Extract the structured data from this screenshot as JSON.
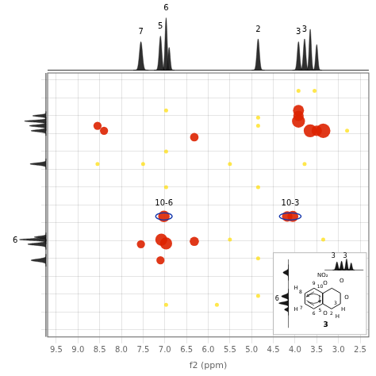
{
  "chart_data": {
    "type": "scatter",
    "x_label": "f2 (ppm)",
    "xlim": [
      9.7,
      2.3
    ],
    "ylim": [
      9.7,
      2.3
    ],
    "xticks": [
      9.5,
      {
        "value": 9,
        "label": "9.0"
      },
      8.5,
      {
        "value": 8,
        "label": "8.0"
      },
      7.5,
      {
        "value": 7,
        "label": "7.0"
      },
      6.5,
      {
        "value": 6,
        "label": "6.0"
      },
      5.5,
      {
        "value": 5,
        "label": "5.0"
      },
      4.5,
      {
        "value": 4,
        "label": "4.0"
      },
      3.5,
      {
        "value": 3,
        "label": "3.0"
      },
      2.5
    ],
    "yticks": [
      9.5,
      9,
      8.5,
      8,
      7.5,
      7,
      6.5,
      6,
      5.5,
      5,
      4.5,
      4,
      3.5,
      3,
      2.5
    ],
    "tick_labels": "x",
    "grid": true,
    "series": [
      {
        "color": "#ffdd00",
        "x": [
          6.97,
          5.8,
          6.97,
          5.5,
          6.97,
          6.97,
          3.35,
          4.85,
          3.92,
          3.55,
          2.8,
          5.5,
          4.85,
          7.5,
          4.85,
          8.55,
          4.85,
          3.78,
          4.85
        ],
        "y": [
          8.8,
          8.8,
          5.5,
          6.97,
          4.5,
          3.35,
          6.97,
          3.55,
          2.8,
          2.8,
          3.92,
          4.85,
          5.5,
          4.85,
          7.5,
          4.85,
          8.55,
          4.85,
          3.78
        ]
      },
      {
        "color": "#dd2200",
        "x": [
          7.1,
          7.55,
          7.08,
          6.97,
          7.02,
          6.32,
          4.05,
          4.18,
          6.32,
          3.65,
          3.92,
          3.5,
          3.92,
          3.35,
          3.92,
          8.55,
          8.4
        ],
        "y": [
          7.55,
          7.1,
          6.97,
          7.08,
          6.32,
          7.02,
          6.32,
          6.32,
          4.1,
          3.92,
          3.65,
          3.92,
          3.5,
          3.92,
          3.35,
          3.78,
          3.92
        ],
        "sizes": [
          55,
          55,
          120,
          120,
          110,
          70,
          100,
          90,
          60,
          140,
          140,
          90,
          90,
          170,
          100,
          55,
          55
        ]
      }
    ],
    "annotations": [
      {
        "shape": "ellipse",
        "x": 7.02,
        "y": 6.32,
        "width": 0.38,
        "height": 0.2,
        "color": "#1133aa",
        "text": "10-6",
        "text_x": 7.02,
        "text_y": 6.07
      },
      {
        "shape": "ellipse",
        "x": 4.11,
        "y": 6.32,
        "width": 0.5,
        "height": 0.2,
        "color": "#1133aa",
        "text": "10-3",
        "text_x": 4.11,
        "text_y": 6.07
      }
    ],
    "top_spectrum": {
      "color": "#1a1a1a",
      "ylim": [
        -0.05,
        1.15
      ],
      "peaks": [
        {
          "ppm": 7.55,
          "height": 0.5,
          "width": 0.035,
          "label": "7",
          "label_x": 7.55,
          "label_y": 0.58
        },
        {
          "ppm": 7.1,
          "height": 0.6,
          "width": 0.03,
          "label": "5",
          "label_x": 7.1,
          "label_y": 0.68
        },
        {
          "ppm": 6.97,
          "height": 0.92,
          "width": 0.025,
          "label": "6",
          "label_x": 6.97,
          "label_y": 1.0
        },
        {
          "ppm": 6.9,
          "height": 0.4,
          "width": 0.025
        },
        {
          "ppm": 4.85,
          "height": 0.55,
          "width": 0.03,
          "label": "2",
          "label_x": 4.85,
          "label_y": 0.63
        },
        {
          "ppm": 3.92,
          "height": 0.5,
          "width": 0.028,
          "label": "3",
          "label_x": 3.92,
          "label_y": 0.58
        },
        {
          "ppm": 3.78,
          "height": 0.55,
          "width": 0.028,
          "label": "3",
          "label_x": 3.78,
          "label_y": 0.63
        },
        {
          "ppm": 3.65,
          "height": 0.72,
          "width": 0.025
        },
        {
          "ppm": 3.5,
          "height": 0.45,
          "width": 0.025
        }
      ]
    },
    "left_spectrum": {
      "color": "#1a1a1a",
      "xlim": [
        1.1,
        -0.05
      ],
      "peaks": [
        {
          "ppm": 7.55,
          "height": 0.45,
          "width": 0.035
        },
        {
          "ppm": 7.1,
          "height": 0.55,
          "width": 0.03
        },
        {
          "ppm": 6.97,
          "height": 0.8,
          "width": 0.025
        },
        {
          "ppm": 6.9,
          "height": 0.35,
          "width": 0.025
        },
        {
          "ppm": 4.85,
          "height": 0.48,
          "width": 0.03
        },
        {
          "ppm": 3.92,
          "height": 0.45,
          "width": 0.028
        },
        {
          "ppm": 3.78,
          "height": 0.5,
          "width": 0.028
        },
        {
          "ppm": 3.65,
          "height": 0.65,
          "width": 0.025
        },
        {
          "ppm": 3.5,
          "height": 0.4,
          "width": 0.025
        }
      ],
      "labels": [
        {
          "text": "6",
          "x": 0.85,
          "y": 7.0
        }
      ]
    },
    "inset": {
      "color": "#000000",
      "left_spectrum": {
        "xlim": [
          0.9,
          -0.05
        ],
        "ylim": [
          6.5,
          7.8
        ],
        "peaks": [
          {
            "ppm": 7.55,
            "height": 0.4,
            "width": 0.03
          },
          {
            "ppm": 7.1,
            "height": 0.52,
            "width": 0.028
          },
          {
            "ppm": 6.97,
            "height": 0.72,
            "width": 0.022
          },
          {
            "ppm": 6.85,
            "height": 0.3,
            "width": 0.022
          }
        ],
        "labels": [
          {
            "text": "6",
            "x": 0.7,
            "y": 7.05
          }
        ]
      },
      "top_spectrum": {
        "xlim": [
          4.3,
          3.2
        ],
        "ylim": [
          -0.05,
          1.0
        ],
        "peaks": [
          {
            "ppm": 3.95,
            "height": 0.55,
            "width": 0.03
          },
          {
            "ppm": 3.82,
            "height": 0.6,
            "width": 0.028
          },
          {
            "ppm": 3.68,
            "height": 0.75,
            "width": 0.025
          },
          {
            "ppm": 3.55,
            "height": 0.48,
            "width": 0.025
          }
        ],
        "labels": [
          {
            "text": "3",
            "x": 4.05,
            "y": 0.72
          },
          {
            "text": "3",
            "x": 3.72,
            "y": 0.72
          }
        ]
      },
      "structure_texts": [
        "NO₂",
        "O",
        "O",
        "9",
        "8",
        "7",
        "6",
        "5",
        "10",
        "2",
        "3",
        "H",
        "H",
        "H",
        "H",
        "O",
        "O"
      ],
      "structure_label": "3"
    }
  }
}
